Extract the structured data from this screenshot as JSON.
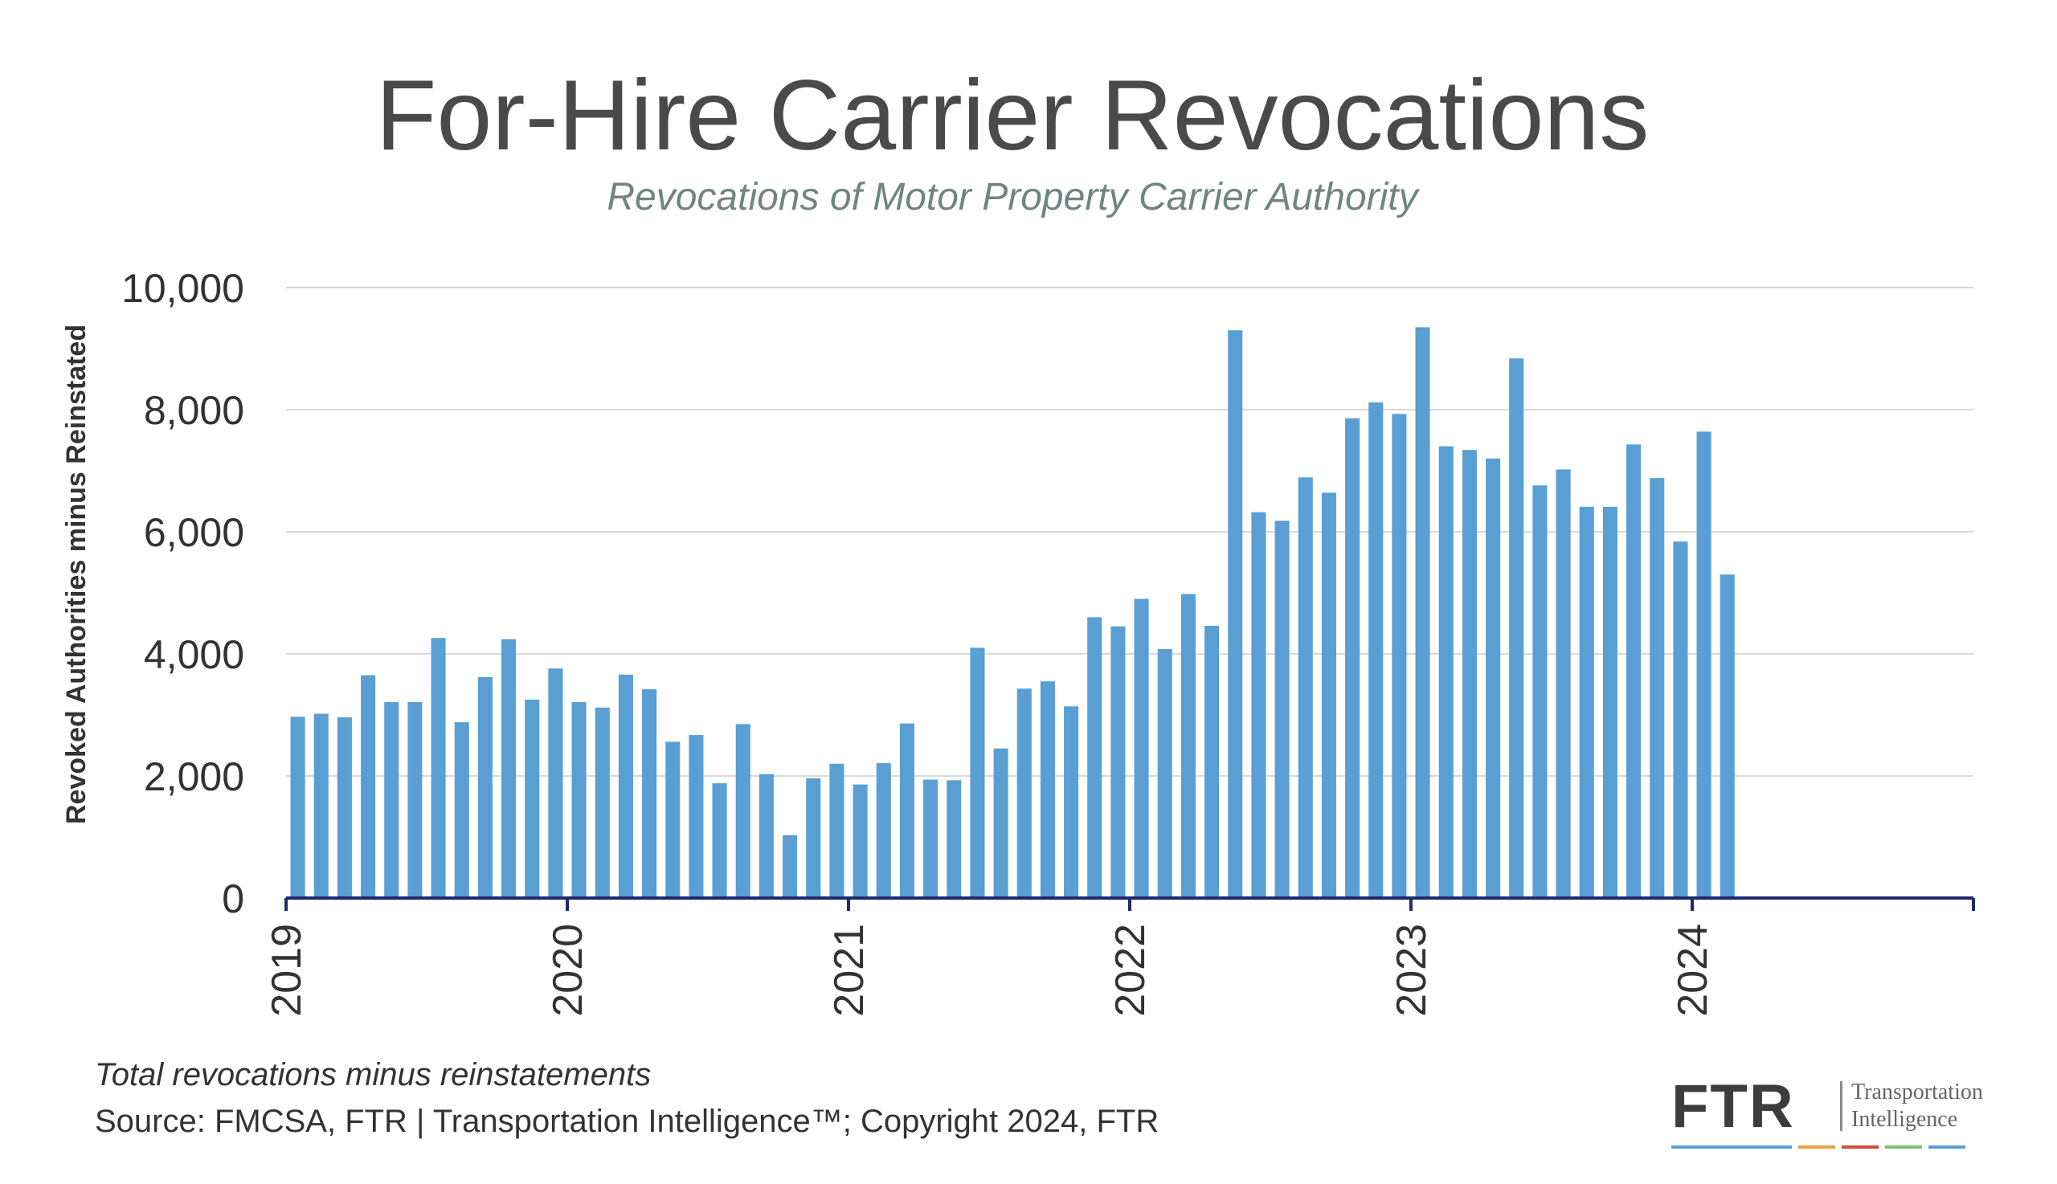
{
  "chart_data": {
    "type": "bar",
    "title": "For-Hire Carrier Revocations",
    "subtitle": "Revocations of Motor Property Carrier Authority",
    "ylabel": "Revoked Authorities minus Reinstated",
    "xlabel": "",
    "ylim": [
      0,
      10000
    ],
    "yticks": [
      0,
      2000,
      4000,
      6000,
      8000,
      10000
    ],
    "ytick_labels": [
      "0",
      "2,000",
      "4,000",
      "6,000",
      "8,000",
      "10,000"
    ],
    "xticks": [
      "2019",
      "2020",
      "2021",
      "2022",
      "2023",
      "2024"
    ],
    "grid": true,
    "bar_color": "#5a9fd4",
    "axis_color": "#1f2a6b",
    "series": [
      {
        "start": "2019-01",
        "frequency": "monthly",
        "values": [
          2970,
          3020,
          2960,
          3650,
          3210,
          3210,
          4260,
          2880,
          3620,
          4240,
          3250,
          3760,
          3210,
          3120,
          3660,
          3420,
          2560,
          2670,
          1880,
          2850,
          2030,
          1030,
          1960,
          2200,
          1860,
          2210,
          2860,
          1940,
          1930,
          4100,
          2450,
          3430,
          3550,
          3140,
          4600,
          4450,
          4900,
          4080,
          4980,
          4460,
          9300,
          6320,
          6180,
          6890,
          6640,
          7860,
          8120,
          7930,
          9350,
          7400,
          7340,
          7200,
          8840,
          6760,
          7020,
          6410,
          6410,
          7430,
          6880,
          5840,
          7640,
          5300
        ]
      }
    ]
  },
  "footnote": "Total revocations minus reinstatements",
  "source": "Source: FMCSA, FTR | Transportation Intelligence™; Copyright 2024, FTR",
  "logo": {
    "mark": "FTR",
    "line1": "Transportation",
    "line2": "Intelligence",
    "stripe_colors": [
      "#5a9fd4",
      "#e8a24a",
      "#d84a3e",
      "#7cc16b",
      "#5a9fd4"
    ]
  }
}
